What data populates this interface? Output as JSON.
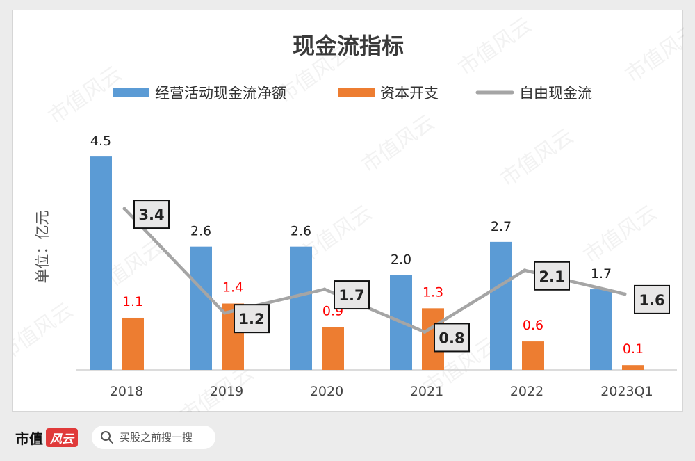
{
  "chart_data": {
    "type": "bar",
    "title": "现金流指标",
    "ylabel": "单位：亿元",
    "xlabel": "",
    "categories": [
      "2018",
      "2019",
      "2020",
      "2021",
      "2022",
      "2023Q1"
    ],
    "ylim": [
      0,
      5
    ],
    "grid": false,
    "legend_position": "top",
    "series": [
      {
        "name": "经营活动现金流净额",
        "kind": "bar",
        "color": "#5b9bd5",
        "label_color": "#222222",
        "values": [
          4.5,
          2.6,
          2.6,
          2.0,
          2.7,
          1.7
        ],
        "labels": [
          "4.5",
          "2.6",
          "2.6",
          "2.0",
          "2.7",
          "1.7"
        ]
      },
      {
        "name": "资本开支",
        "kind": "bar",
        "color": "#ed7d31",
        "label_color": "#ff0000",
        "values": [
          1.1,
          1.4,
          0.9,
          1.3,
          0.6,
          0.1
        ],
        "labels": [
          "1.1",
          "1.4",
          "0.9",
          "1.3",
          "0.6",
          "0.1"
        ]
      },
      {
        "name": "自由现金流",
        "kind": "line",
        "color": "#a5a5a5",
        "label_color": "#222222",
        "values": [
          3.4,
          1.2,
          1.7,
          0.8,
          2.1,
          1.6
        ],
        "labels": [
          "3.4",
          "1.2",
          "1.7",
          "0.8",
          "2.1",
          "1.6"
        ]
      }
    ]
  },
  "watermark": "市值风云",
  "footer": {
    "brand": "市值",
    "brand_logo": "风云",
    "search_placeholder": "买股之前搜一搜"
  }
}
